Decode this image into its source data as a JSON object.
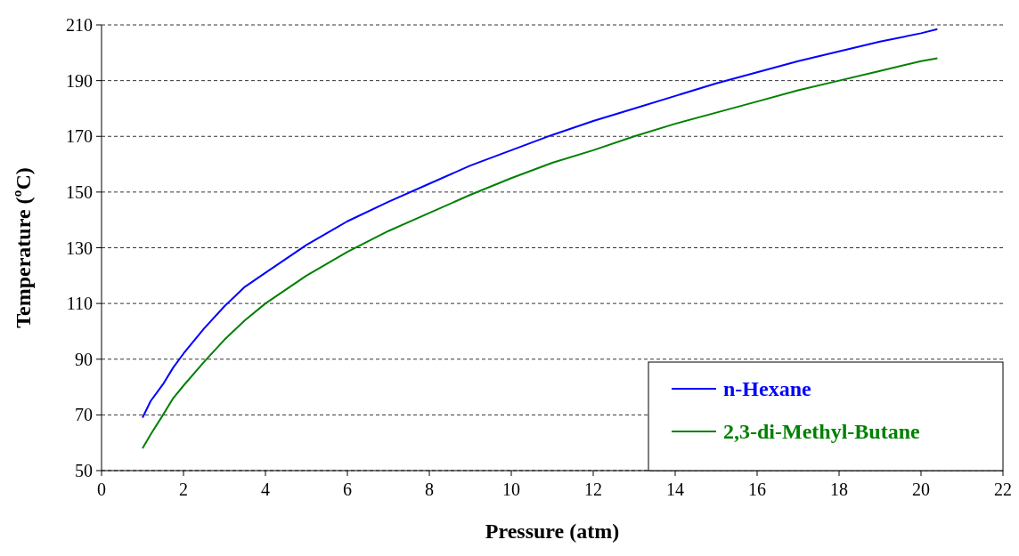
{
  "chart_data": {
    "type": "line",
    "xlabel": "Pressure (atm)",
    "ylabel": "Temperature (ºC)",
    "xlim": [
      0,
      22
    ],
    "xticks": [
      0,
      2,
      4,
      6,
      8,
      10,
      12,
      14,
      16,
      18,
      20,
      22
    ],
    "ylim": [
      50,
      210
    ],
    "yticks": [
      50,
      70,
      90,
      110,
      130,
      150,
      170,
      190,
      210
    ],
    "grid": "y",
    "legend": "bottom right",
    "marker": "none",
    "line_style": "solid",
    "series": [
      {
        "name": "n-Hexane",
        "color": "#0000ff",
        "x": [
          1,
          1.2,
          1.5,
          1.75,
          2,
          2.5,
          3,
          3.5,
          4,
          5,
          6,
          7,
          8,
          9,
          10,
          11,
          12,
          13,
          14,
          15,
          16,
          17,
          18,
          19,
          20,
          20.4
        ],
        "values": [
          69,
          75,
          81,
          87,
          92,
          101,
          109,
          116,
          121,
          131,
          139.5,
          146.5,
          153,
          159.5,
          165,
          170.5,
          175.5,
          180,
          184.5,
          189,
          193,
          197,
          200.5,
          204,
          207,
          208.5
        ]
      },
      {
        "name": "2,3-di-Methyl-Butane",
        "color": "#008000",
        "x": [
          1,
          1.2,
          1.5,
          1.75,
          2,
          2.5,
          3,
          3.5,
          4,
          5,
          6,
          7,
          8,
          9,
          10,
          11,
          12,
          13,
          14,
          15,
          16,
          17,
          18,
          19,
          20,
          20.4
        ],
        "values": [
          58,
          63,
          70,
          76,
          80.5,
          89,
          97,
          104,
          110,
          120,
          128.5,
          136,
          142.5,
          149,
          155,
          160.5,
          165,
          170,
          174.5,
          178.5,
          182.5,
          186.5,
          190,
          193.5,
          197,
          198
        ]
      }
    ]
  }
}
